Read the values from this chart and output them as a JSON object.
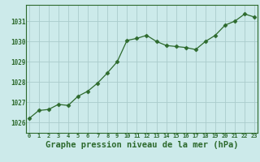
{
  "x": [
    0,
    1,
    2,
    3,
    4,
    5,
    6,
    7,
    8,
    9,
    10,
    11,
    12,
    13,
    14,
    15,
    16,
    17,
    18,
    19,
    20,
    21,
    22,
    23
  ],
  "y": [
    1026.2,
    1026.6,
    1026.65,
    1026.9,
    1026.85,
    1027.3,
    1027.55,
    1027.95,
    1028.45,
    1029.0,
    1030.05,
    1030.15,
    1030.3,
    1030.0,
    1029.8,
    1029.75,
    1029.7,
    1029.6,
    1030.0,
    1030.3,
    1030.8,
    1031.0,
    1031.35,
    1031.2
  ],
  "line_color": "#2d6a2d",
  "marker": "D",
  "marker_size": 2.5,
  "bg_color": "#cceaea",
  "grid_color": "#aacccc",
  "xlabel": "Graphe pression niveau de la mer (hPa)",
  "xlabel_fontsize": 7.5,
  "ylabel_ticks": [
    1026,
    1027,
    1028,
    1029,
    1030,
    1031
  ],
  "xtick_labels": [
    "0",
    "1",
    "2",
    "3",
    "4",
    "5",
    "6",
    "7",
    "8",
    "9",
    "10",
    "11",
    "12",
    "13",
    "14",
    "15",
    "16",
    "17",
    "18",
    "19",
    "20",
    "21",
    "22",
    "23"
  ],
  "ylim": [
    1025.5,
    1031.8
  ],
  "xlim": [
    -0.3,
    23.3
  ]
}
